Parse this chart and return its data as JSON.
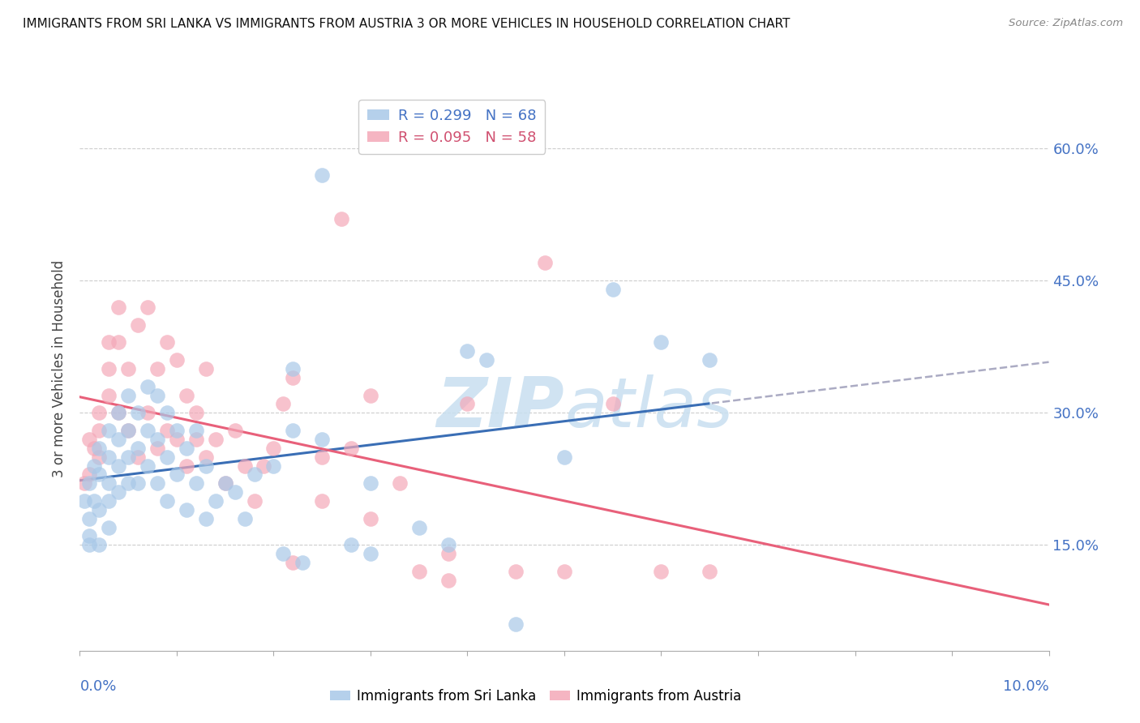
{
  "title": "IMMIGRANTS FROM SRI LANKA VS IMMIGRANTS FROM AUSTRIA 3 OR MORE VEHICLES IN HOUSEHOLD CORRELATION CHART",
  "source": "Source: ZipAtlas.com",
  "ylabel_label": "3 or more Vehicles in Household",
  "ytick_labels": [
    "60.0%",
    "45.0%",
    "30.0%",
    "15.0%"
  ],
  "ytick_values": [
    0.6,
    0.45,
    0.3,
    0.15
  ],
  "xlim": [
    0.0,
    0.1
  ],
  "ylim": [
    0.03,
    0.67
  ],
  "legend_line1": "R = 0.299   N = 68",
  "legend_line2": "R = 0.095   N = 58",
  "sri_lanka_x": [
    0.0005,
    0.001,
    0.001,
    0.001,
    0.001,
    0.0015,
    0.0015,
    0.002,
    0.002,
    0.002,
    0.002,
    0.003,
    0.003,
    0.003,
    0.003,
    0.003,
    0.004,
    0.004,
    0.004,
    0.004,
    0.005,
    0.005,
    0.005,
    0.005,
    0.006,
    0.006,
    0.006,
    0.007,
    0.007,
    0.007,
    0.008,
    0.008,
    0.008,
    0.009,
    0.009,
    0.009,
    0.01,
    0.01,
    0.011,
    0.011,
    0.012,
    0.012,
    0.013,
    0.013,
    0.014,
    0.015,
    0.016,
    0.017,
    0.018,
    0.02,
    0.021,
    0.022,
    0.023,
    0.025,
    0.028,
    0.03,
    0.035,
    0.038,
    0.04,
    0.042,
    0.045,
    0.05,
    0.055,
    0.022,
    0.025,
    0.03,
    0.06,
    0.065
  ],
  "sri_lanka_y": [
    0.2,
    0.22,
    0.18,
    0.16,
    0.15,
    0.24,
    0.2,
    0.26,
    0.23,
    0.19,
    0.15,
    0.28,
    0.25,
    0.22,
    0.2,
    0.17,
    0.3,
    0.27,
    0.24,
    0.21,
    0.32,
    0.28,
    0.25,
    0.22,
    0.3,
    0.26,
    0.22,
    0.33,
    0.28,
    0.24,
    0.32,
    0.27,
    0.22,
    0.3,
    0.25,
    0.2,
    0.28,
    0.23,
    0.26,
    0.19,
    0.28,
    0.22,
    0.24,
    0.18,
    0.2,
    0.22,
    0.21,
    0.18,
    0.23,
    0.24,
    0.14,
    0.28,
    0.13,
    0.27,
    0.15,
    0.14,
    0.17,
    0.15,
    0.37,
    0.36,
    0.06,
    0.25,
    0.44,
    0.35,
    0.57,
    0.22,
    0.38,
    0.36
  ],
  "austria_x": [
    0.0005,
    0.001,
    0.001,
    0.0015,
    0.002,
    0.002,
    0.002,
    0.003,
    0.003,
    0.003,
    0.004,
    0.004,
    0.004,
    0.005,
    0.005,
    0.006,
    0.006,
    0.007,
    0.007,
    0.008,
    0.008,
    0.009,
    0.009,
    0.01,
    0.01,
    0.011,
    0.011,
    0.012,
    0.012,
    0.013,
    0.013,
    0.014,
    0.015,
    0.016,
    0.017,
    0.018,
    0.019,
    0.02,
    0.021,
    0.022,
    0.025,
    0.028,
    0.03,
    0.033,
    0.038,
    0.04,
    0.022,
    0.025,
    0.027,
    0.03,
    0.035,
    0.038,
    0.06,
    0.065,
    0.055,
    0.05,
    0.045,
    0.048
  ],
  "austria_y": [
    0.22,
    0.27,
    0.23,
    0.26,
    0.3,
    0.28,
    0.25,
    0.38,
    0.35,
    0.32,
    0.42,
    0.38,
    0.3,
    0.35,
    0.28,
    0.4,
    0.25,
    0.42,
    0.3,
    0.35,
    0.26,
    0.38,
    0.28,
    0.36,
    0.27,
    0.32,
    0.24,
    0.3,
    0.27,
    0.25,
    0.35,
    0.27,
    0.22,
    0.28,
    0.24,
    0.2,
    0.24,
    0.26,
    0.31,
    0.34,
    0.25,
    0.26,
    0.32,
    0.22,
    0.14,
    0.31,
    0.13,
    0.2,
    0.52,
    0.18,
    0.12,
    0.11,
    0.12,
    0.12,
    0.31,
    0.12,
    0.12,
    0.47
  ],
  "blue_color": "#a8c8e8",
  "pink_color": "#f4a8b8",
  "blue_line_color": "#3a6eb5",
  "pink_line_color": "#e8607a",
  "watermark_color": "#c8dff0",
  "background_color": "#ffffff",
  "grid_color": "#cccccc"
}
